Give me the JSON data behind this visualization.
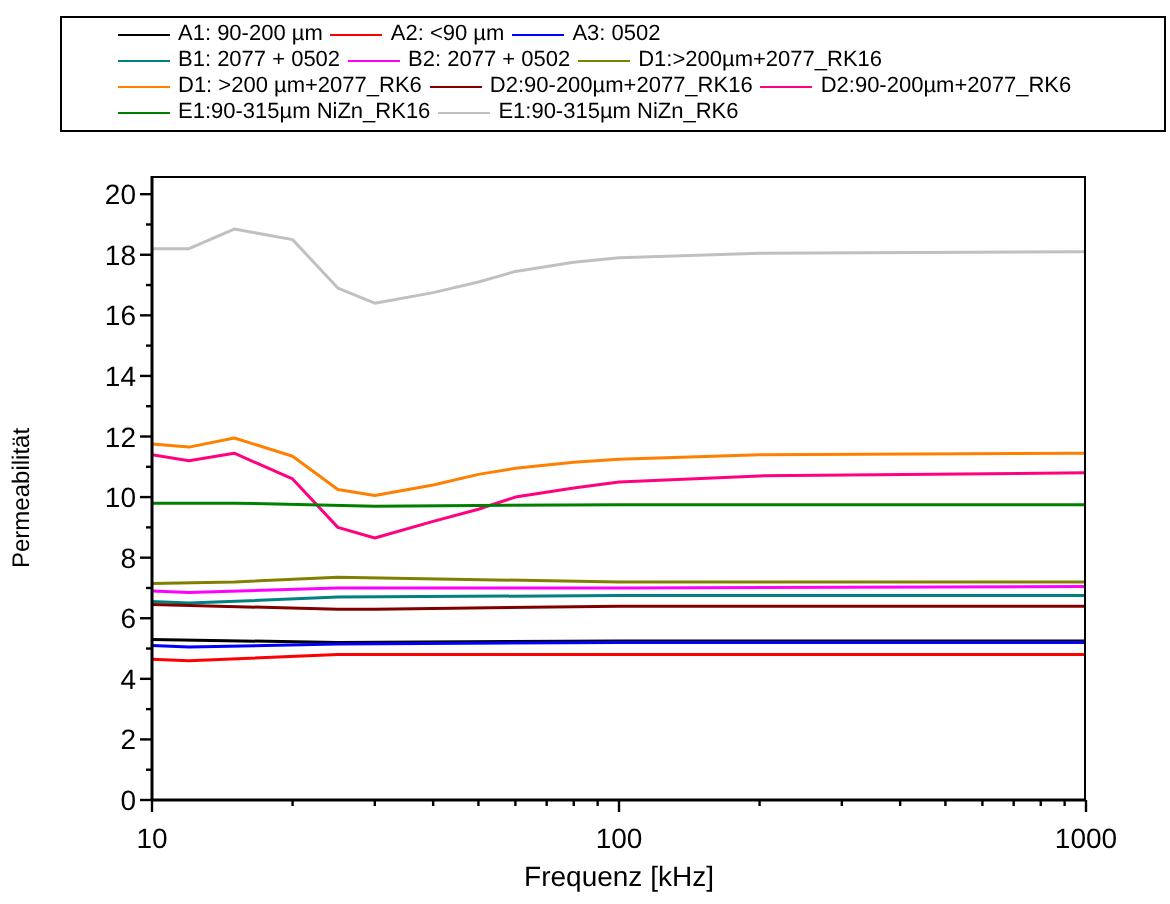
{
  "chart_data": {
    "type": "line",
    "xlabel": "Frequenz [kHz]",
    "ylabel": "Permeabilität",
    "log": "x",
    "legend": "top",
    "grid": false,
    "xlim": [
      10,
      1000
    ],
    "xticks": [
      10,
      {
        "value": 20,
        "label": null
      },
      {
        "value": 30,
        "label": null
      },
      {
        "value": 40,
        "label": null
      },
      {
        "value": 50,
        "label": null
      },
      {
        "value": 60,
        "label": null
      },
      {
        "value": 70,
        "label": null
      },
      {
        "value": 80,
        "label": null
      },
      {
        "value": 90,
        "label": null
      },
      100,
      {
        "value": 200,
        "label": null
      },
      {
        "value": 300,
        "label": null
      },
      {
        "value": 400,
        "label": null
      },
      {
        "value": 500,
        "label": null
      },
      {
        "value": 600,
        "label": null
      },
      {
        "value": 700,
        "label": null
      },
      {
        "value": 800,
        "label": null
      },
      {
        "value": 900,
        "label": null
      },
      1000
    ],
    "ylim": [
      0,
      20.6
    ],
    "yticks": [
      0,
      {
        "value": 1,
        "label": null
      },
      2,
      {
        "value": 3,
        "label": null
      },
      4,
      {
        "value": 5,
        "label": null
      },
      6,
      {
        "value": 7,
        "label": null
      },
      8,
      {
        "value": 9,
        "label": null
      },
      10,
      {
        "value": 11,
        "label": null
      },
      12,
      {
        "value": 13,
        "label": null
      },
      14,
      {
        "value": 15,
        "label": null
      },
      16,
      {
        "value": 17,
        "label": null
      },
      18,
      {
        "value": 19,
        "label": null
      },
      20
    ],
    "series": [
      {
        "name": "A1: 90-200 µm",
        "color": "#000000",
        "x": [
          10,
          25,
          100,
          1000
        ],
        "values": [
          5.3,
          5.2,
          5.25,
          5.25
        ]
      },
      {
        "name": "A2: <90 µm",
        "color": "#ff0000",
        "x": [
          10,
          12,
          25,
          100,
          1000
        ],
        "values": [
          4.65,
          4.6,
          4.8,
          4.8,
          4.8
        ]
      },
      {
        "name": "A3: 0502",
        "color": "#0000ff",
        "x": [
          10,
          12,
          25,
          100,
          1000
        ],
        "values": [
          5.1,
          5.05,
          5.15,
          5.2,
          5.2
        ]
      },
      {
        "name": "B1: 2077 + 0502",
        "color": "#008080",
        "x": [
          10,
          12,
          25,
          100,
          1000
        ],
        "values": [
          6.55,
          6.5,
          6.7,
          6.75,
          6.75
        ]
      },
      {
        "name": "B2: 2077 + 0502",
        "color": "#ff00ff",
        "x": [
          10,
          12,
          25,
          100,
          1000
        ],
        "values": [
          6.9,
          6.85,
          7.0,
          7.0,
          7.05
        ]
      },
      {
        "name": "D1:>200µm+2077_RK16",
        "color": "#808000",
        "x": [
          10,
          15,
          25,
          100,
          1000
        ],
        "values": [
          7.15,
          7.2,
          7.35,
          7.2,
          7.2
        ]
      },
      {
        "name": "D1: >200 µm+2077_RK6",
        "color": "#ff8000",
        "x": [
          10,
          12,
          15,
          20,
          25,
          30,
          40,
          50,
          60,
          80,
          100,
          200,
          1000
        ],
        "values": [
          11.75,
          11.65,
          11.95,
          11.35,
          10.25,
          10.05,
          10.4,
          10.75,
          10.95,
          11.15,
          11.25,
          11.4,
          11.45
        ]
      },
      {
        "name": "D2:90-200µm+2077_RK16",
        "color": "#800000",
        "x": [
          10,
          25,
          30,
          100,
          1000
        ],
        "values": [
          6.45,
          6.3,
          6.3,
          6.4,
          6.4
        ]
      },
      {
        "name": "D2:90-200µm+2077_RK6",
        "color": "#ff0080",
        "x": [
          10,
          12,
          15,
          20,
          25,
          30,
          40,
          50,
          60,
          80,
          100,
          200,
          1000
        ],
        "values": [
          11.4,
          11.2,
          11.45,
          10.6,
          9.0,
          8.65,
          9.2,
          9.6,
          10.0,
          10.3,
          10.5,
          10.7,
          10.8
        ]
      },
      {
        "name": "E1:90-315µm NiZn_RK16",
        "color": "#008000",
        "x": [
          10,
          15,
          30,
          100,
          1000
        ],
        "values": [
          9.8,
          9.8,
          9.7,
          9.75,
          9.75
        ]
      },
      {
        "name": "E1:90-315µm NiZn_RK6",
        "color": "#c0c0c0",
        "x": [
          10,
          12,
          15,
          20,
          25,
          30,
          40,
          50,
          60,
          80,
          100,
          200,
          1000
        ],
        "values": [
          18.2,
          18.2,
          18.85,
          18.5,
          16.9,
          16.4,
          16.75,
          17.1,
          17.45,
          17.75,
          17.9,
          18.05,
          18.1
        ]
      }
    ]
  }
}
